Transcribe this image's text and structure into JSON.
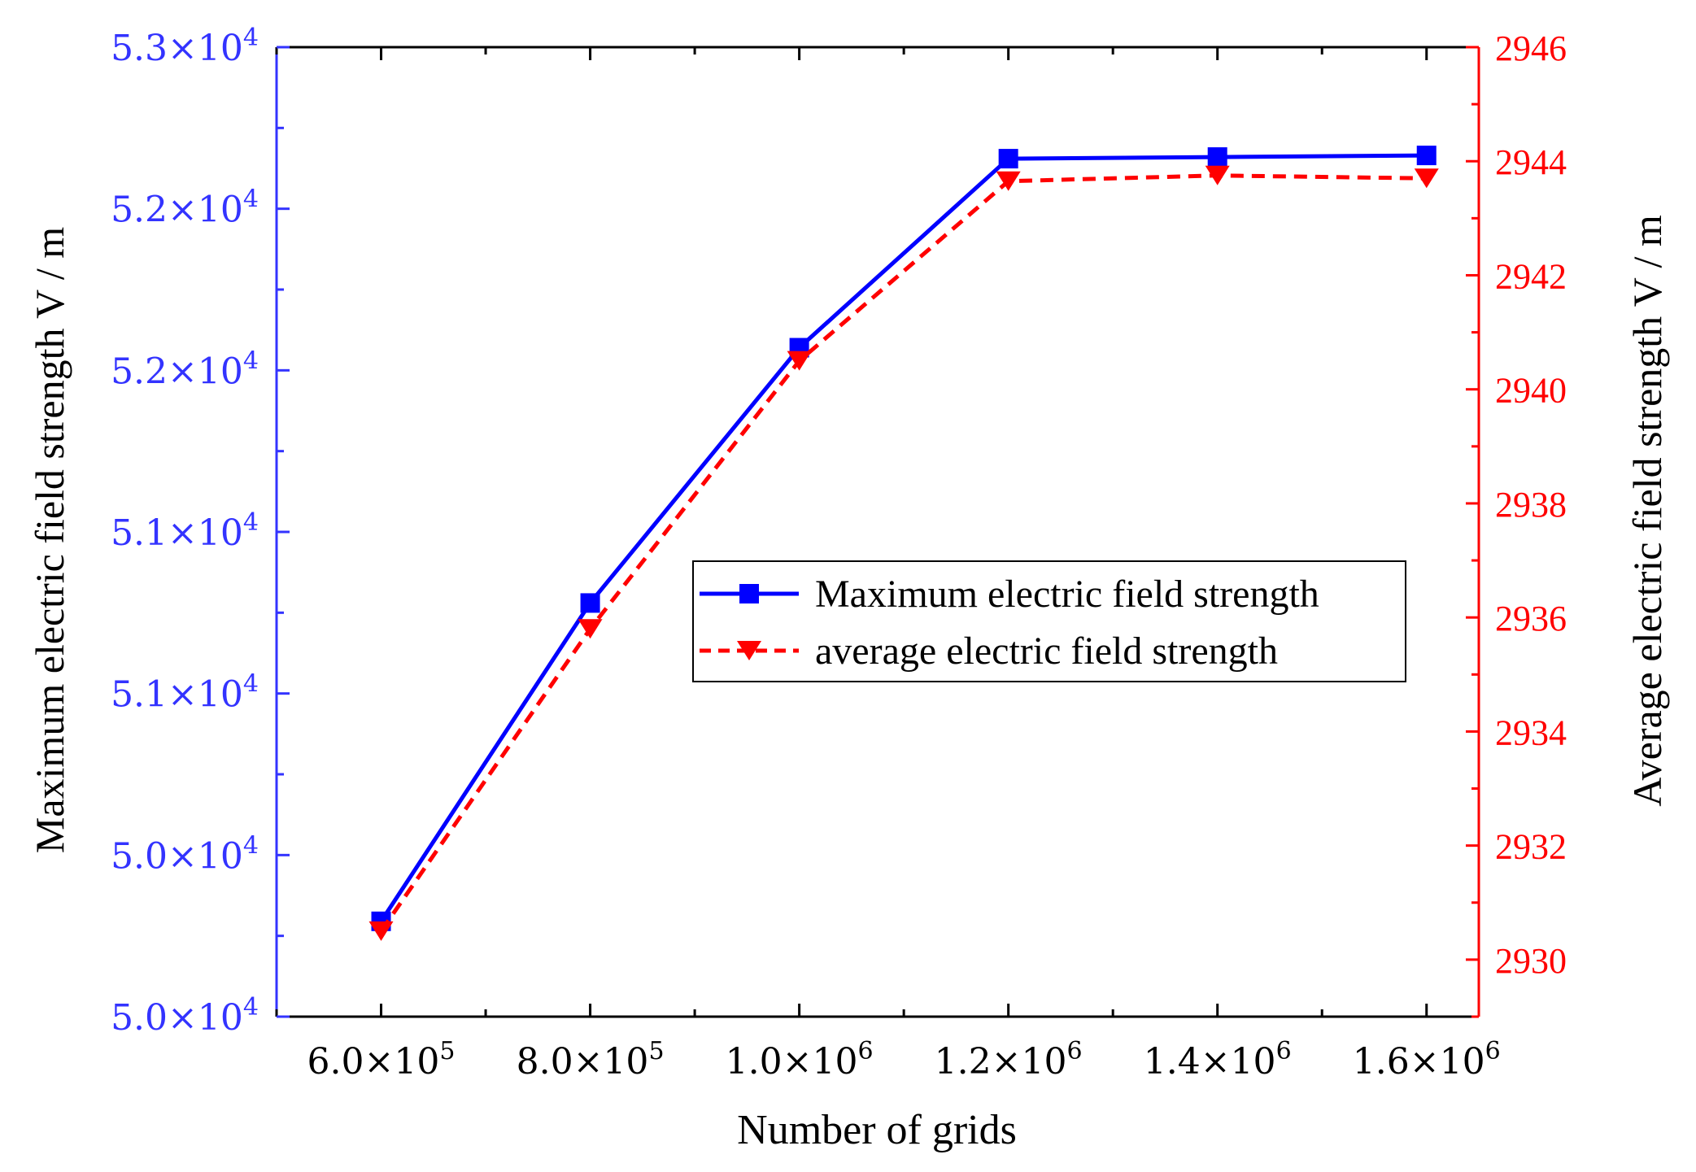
{
  "chart_data": {
    "type": "line",
    "title": "",
    "xlabel": "Number of grids",
    "ylabel_left": "Maximum electric field strength V / m",
    "ylabel_right": "Average electric field strength V / m",
    "x": [
      600000,
      800000,
      1000000,
      1200000,
      1400000,
      1600000
    ],
    "x_tick_labels": [
      {
        "mantissa": "6.0×10",
        "exp": "5"
      },
      {
        "mantissa": "8.0×10",
        "exp": "5"
      },
      {
        "mantissa": "1.0×10",
        "exp": "6"
      },
      {
        "mantissa": "1.2×10",
        "exp": "6"
      },
      {
        "mantissa": "1.4×10",
        "exp": "6"
      },
      {
        "mantissa": "1.6×10",
        "exp": "6"
      }
    ],
    "xlim": [
      500000,
      1650000
    ],
    "left_axis": {
      "ylim": [
        0,
        6
      ],
      "tick_positions": [
        0,
        1,
        2,
        3,
        4,
        5,
        6
      ],
      "tick_labels": [
        {
          "mantissa": "5.0×10",
          "exp": "4"
        },
        {
          "mantissa": "5.0×10",
          "exp": "4"
        },
        {
          "mantissa": "5.1×10",
          "exp": "4"
        },
        {
          "mantissa": "5.1×10",
          "exp": "4"
        },
        {
          "mantissa": "5.2×10",
          "exp": "4"
        },
        {
          "mantissa": "5.2×10",
          "exp": "4"
        },
        {
          "mantissa": "5.3×10",
          "exp": "4"
        }
      ],
      "color": "#3333ff"
    },
    "right_axis": {
      "ylim": [
        2929,
        2946
      ],
      "tick_values": [
        2930,
        2932,
        2934,
        2936,
        2938,
        2940,
        2942,
        2944,
        2946
      ],
      "color": "#ff0000"
    },
    "series": [
      {
        "name": "Maximum electric field strength",
        "axis": "left",
        "color": "#0000ff",
        "line": "solid",
        "marker": "square",
        "values": [
          0.59,
          2.56,
          4.14,
          5.31,
          5.32,
          5.33
        ]
      },
      {
        "name": "average electric field strength",
        "axis": "right",
        "color": "#ff0000",
        "line": "dashed",
        "marker": "triangle-down",
        "values": [
          2930.5,
          2935.8,
          2940.5,
          2943.65,
          2943.75,
          2943.7
        ]
      }
    ],
    "legend": {
      "position": "center-right",
      "entries": [
        "Maximum electric field strength",
        "average electric field strength"
      ]
    }
  }
}
